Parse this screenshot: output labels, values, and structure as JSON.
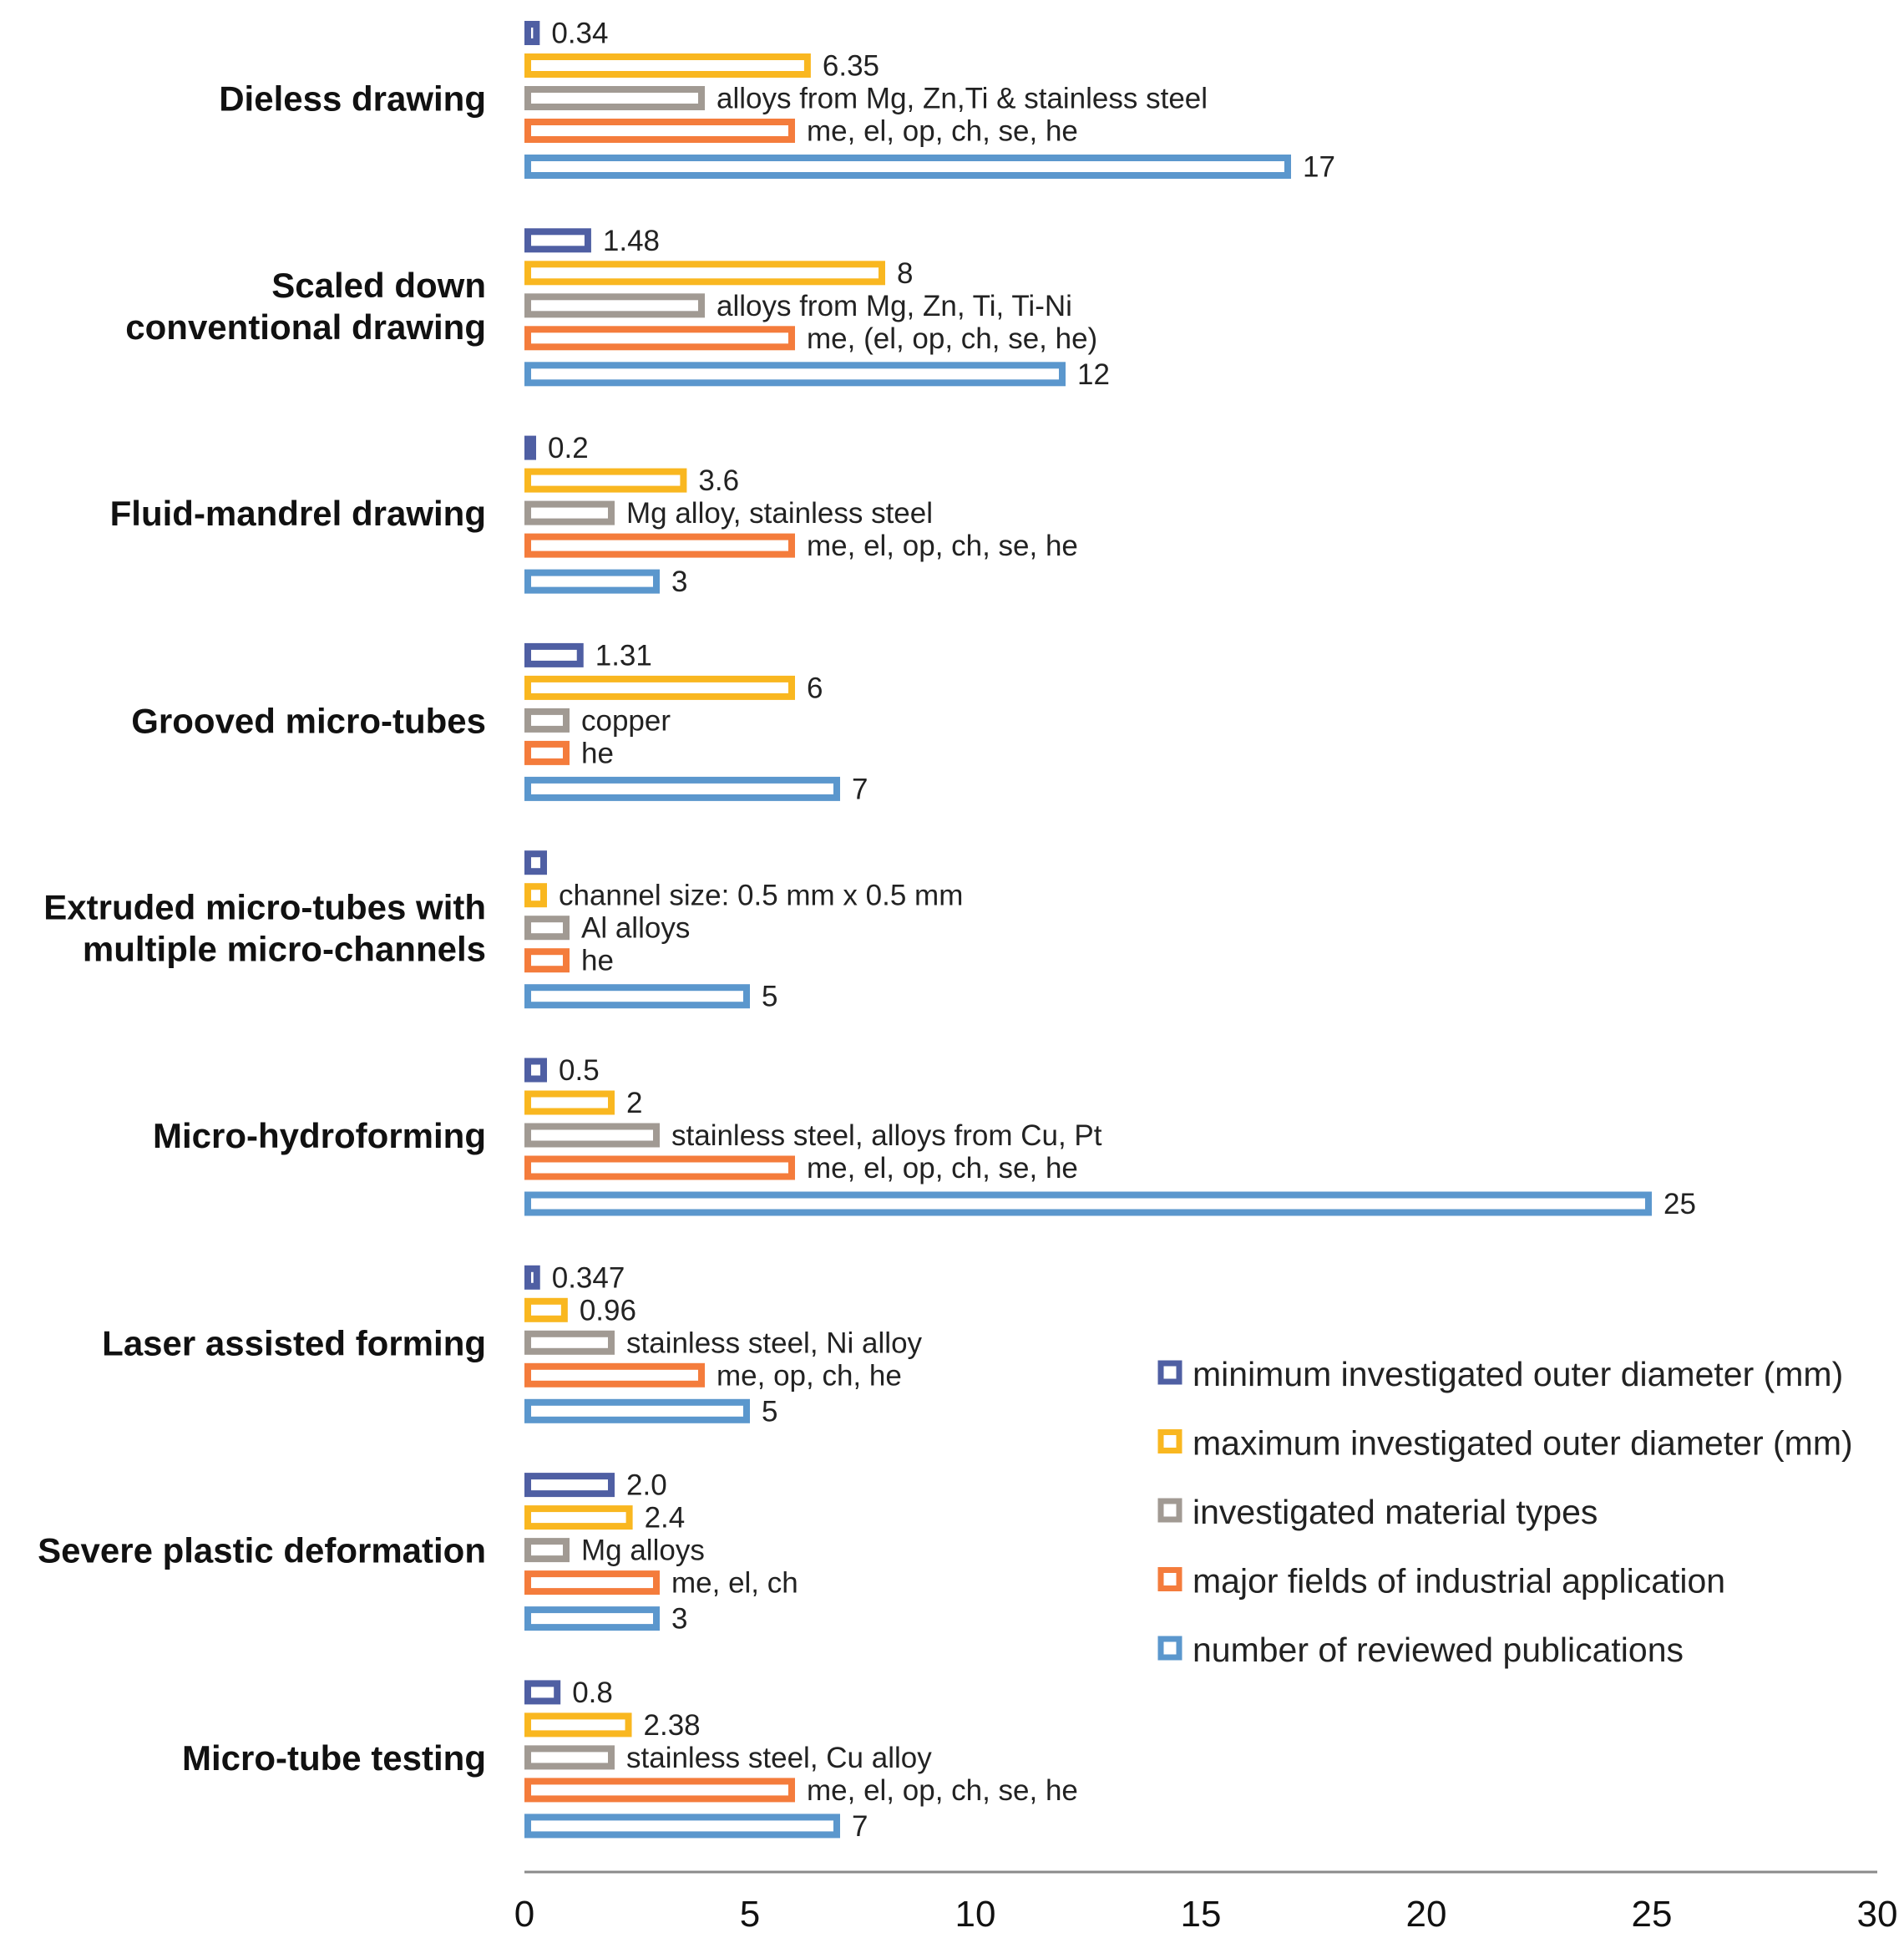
{
  "chart_data": {
    "type": "bar",
    "orientation": "horizontal",
    "xlim": [
      0,
      30
    ],
    "xticks": [
      "0",
      "5",
      "10",
      "15",
      "20",
      "25",
      "30"
    ],
    "grid": false,
    "legend_position": "bottom-right",
    "series": [
      {
        "name": "minimum investigated outer diameter (mm)",
        "color": "#4f5fa3"
      },
      {
        "name": "maximum investigated outer diameter (mm)",
        "color": "#f9b720"
      },
      {
        "name": "investigated material types",
        "color": "#a19a93"
      },
      {
        "name": "major fields of industrial application",
        "color": "#f47c3c"
      },
      {
        "name": "number of reviewed publications",
        "color": "#5b97cd"
      }
    ],
    "categories": [
      {
        "name": "Dieless drawing",
        "lines": [
          "Dieless drawing"
        ],
        "bars": [
          {
            "value": 0.34,
            "label": "0.34"
          },
          {
            "value": 6.35,
            "label": "6.35"
          },
          {
            "value": 4,
            "label": "alloys from Mg, Zn,Ti & stainless steel"
          },
          {
            "value": 6,
            "label": "me, el, op, ch, se, he"
          },
          {
            "value": 17,
            "label": "17"
          }
        ]
      },
      {
        "name": "Scaled down conventional drawing",
        "lines": [
          "Scaled down",
          "conventional drawing"
        ],
        "bars": [
          {
            "value": 1.48,
            "label": "1.48"
          },
          {
            "value": 8,
            "label": "8"
          },
          {
            "value": 4,
            "label": "alloys from Mg, Zn, Ti, Ti-Ni"
          },
          {
            "value": 6,
            "label": "me, (el, op, ch, se, he)"
          },
          {
            "value": 12,
            "label": "12"
          }
        ]
      },
      {
        "name": "Fluid-mandrel drawing",
        "lines": [
          "Fluid-mandrel drawing"
        ],
        "bars": [
          {
            "value": 0.2,
            "label": "0.2"
          },
          {
            "value": 3.6,
            "label": "3.6"
          },
          {
            "value": 2,
            "label": "Mg alloy, stainless steel"
          },
          {
            "value": 6,
            "label": "me, el, op, ch, se, he"
          },
          {
            "value": 3,
            "label": "3"
          }
        ]
      },
      {
        "name": "Grooved micro-tubes",
        "lines": [
          "Grooved micro-tubes"
        ],
        "bars": [
          {
            "value": 1.31,
            "label": "1.31"
          },
          {
            "value": 6,
            "label": "6"
          },
          {
            "value": 1,
            "label": "copper"
          },
          {
            "value": 1,
            "label": "he"
          },
          {
            "value": 7,
            "label": "7"
          }
        ]
      },
      {
        "name": "Extruded micro-tubes with multiple micro-channels",
        "lines": [
          "Extruded micro-tubes with",
          "multiple micro-channels"
        ],
        "bars": [
          {
            "value": 0.5,
            "label": ""
          },
          {
            "value": 0.5,
            "label": "channel size: 0.5 mm x 0.5 mm"
          },
          {
            "value": 1,
            "label": "Al alloys"
          },
          {
            "value": 1,
            "label": "he"
          },
          {
            "value": 5,
            "label": "5"
          }
        ]
      },
      {
        "name": "Micro-hydroforming",
        "lines": [
          "Micro-hydroforming"
        ],
        "bars": [
          {
            "value": 0.5,
            "label": "0.5"
          },
          {
            "value": 2,
            "label": "2"
          },
          {
            "value": 3,
            "label": "stainless steel, alloys from Cu, Pt"
          },
          {
            "value": 6,
            "label": "me, el, op, ch, se, he"
          },
          {
            "value": 25,
            "label": "25"
          }
        ]
      },
      {
        "name": "Laser assisted forming",
        "lines": [
          "Laser assisted forming"
        ],
        "bars": [
          {
            "value": 0.347,
            "label": "0.347"
          },
          {
            "value": 0.96,
            "label": "0.96"
          },
          {
            "value": 2,
            "label": "stainless steel, Ni alloy"
          },
          {
            "value": 4,
            "label": "me, op, ch, he"
          },
          {
            "value": 5,
            "label": "5"
          }
        ]
      },
      {
        "name": "Severe plastic deformation",
        "lines": [
          "Severe plastic deformation"
        ],
        "bars": [
          {
            "value": 2.0,
            "label": "2.0"
          },
          {
            "value": 2.4,
            "label": "2.4"
          },
          {
            "value": 1,
            "label": "Mg alloys"
          },
          {
            "value": 3,
            "label": "me, el, ch"
          },
          {
            "value": 3,
            "label": "3"
          }
        ]
      },
      {
        "name": "Micro-tube testing",
        "lines": [
          "Micro-tube testing"
        ],
        "bars": [
          {
            "value": 0.8,
            "label": "0.8"
          },
          {
            "value": 2.38,
            "label": "2.38"
          },
          {
            "value": 2,
            "label": "stainless steel, Cu alloy"
          },
          {
            "value": 6,
            "label": "me, el, op, ch, se, he"
          },
          {
            "value": 7,
            "label": "7"
          }
        ]
      }
    ]
  }
}
